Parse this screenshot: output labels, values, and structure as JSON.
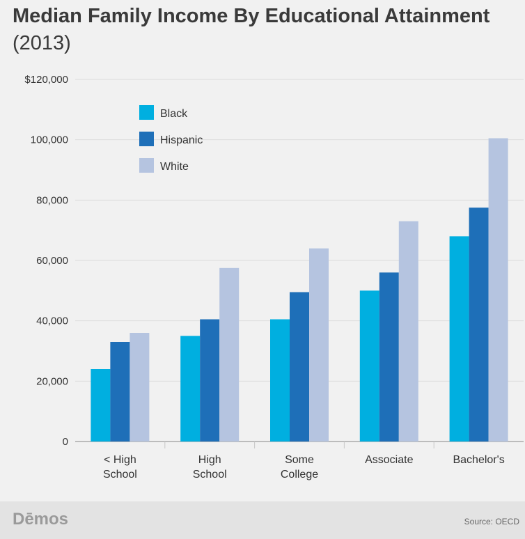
{
  "title_main": "Median Family Income By Educational Attainment",
  "title_year": "(2013)",
  "brand": "Dēmos",
  "source": "Source: OECD",
  "chart_data": {
    "type": "bar",
    "title": "Median Family Income By Educational Attainment (2013)",
    "categories": [
      "< High\nSchool",
      "High\nSchool",
      "Some\nCollege",
      "Associate",
      "Bachelor's"
    ],
    "series": [
      {
        "name": "Black",
        "color": "#00afe0",
        "values": [
          24000,
          35000,
          40500,
          50000,
          68000
        ]
      },
      {
        "name": "Hispanic",
        "color": "#1e6fb8",
        "values": [
          33000,
          40500,
          49500,
          56000,
          77500
        ]
      },
      {
        "name": "White",
        "color": "#b5c4e0",
        "values": [
          36000,
          57500,
          64000,
          73000,
          100500
        ]
      }
    ],
    "yticks": [
      "0",
      "20,000",
      "40,000",
      "60,000",
      "80,000",
      "100,000",
      "$120,000"
    ],
    "ylim": [
      0,
      120000
    ],
    "xlabel": "",
    "ylabel": "",
    "grid": true,
    "legend_position": "top-left"
  }
}
